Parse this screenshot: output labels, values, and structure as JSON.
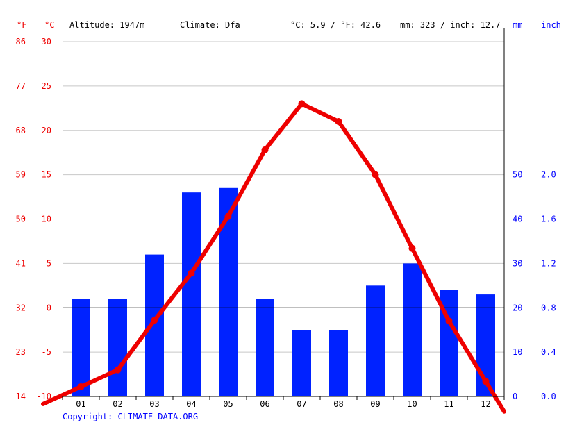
{
  "header": {
    "unit_f": "°F",
    "unit_c": "°C",
    "altitude": "Altitude: 1947m",
    "climate": "Climate: Dfa",
    "temp_summary": "°C: 5.9 / °F: 42.6",
    "precip_summary": "mm: 323 / inch: 12.7",
    "unit_mm": "mm",
    "unit_inch": "inch"
  },
  "copyright": "Copyright: CLIMATE-DATA.ORG",
  "colors": {
    "temperature": "#ee0000",
    "precipitation": "#0022ff",
    "grid": "#c8c8c8",
    "zero_line": "#000000"
  },
  "chart_data": {
    "type": "bar",
    "categories": [
      "01",
      "02",
      "03",
      "04",
      "05",
      "06",
      "07",
      "08",
      "09",
      "10",
      "11",
      "12"
    ],
    "series": [
      {
        "type": "bar",
        "axis": "right",
        "values": [
          22,
          22,
          32,
          46,
          47,
          22,
          15,
          15,
          25,
          30,
          24,
          23
        ]
      },
      {
        "type": "line",
        "axis": "left",
        "values": [
          -8.9,
          -7.0,
          -1.4,
          3.9,
          10.3,
          17.8,
          23.0,
          21.0,
          15.0,
          6.7,
          -1.5,
          -8.3
        ]
      }
    ],
    "left_axis_c": {
      "min": -10,
      "max": 30,
      "ticks": [
        "30",
        "25",
        "20",
        "15",
        "10",
        "5",
        "0",
        "-5",
        "-10"
      ]
    },
    "left_axis_f": {
      "ticks": [
        "86",
        "77",
        "68",
        "59",
        "50",
        "41",
        "32",
        "23",
        "14"
      ]
    },
    "right_axis_mm": {
      "min": 0,
      "max": 80,
      "ticks": [
        "50",
        "40",
        "30",
        "20",
        "10",
        "0"
      ]
    },
    "right_axis_inch": {
      "ticks": [
        "2.0",
        "1.6",
        "1.2",
        "0.8",
        "0.4",
        "0.0"
      ]
    },
    "grid": true
  }
}
